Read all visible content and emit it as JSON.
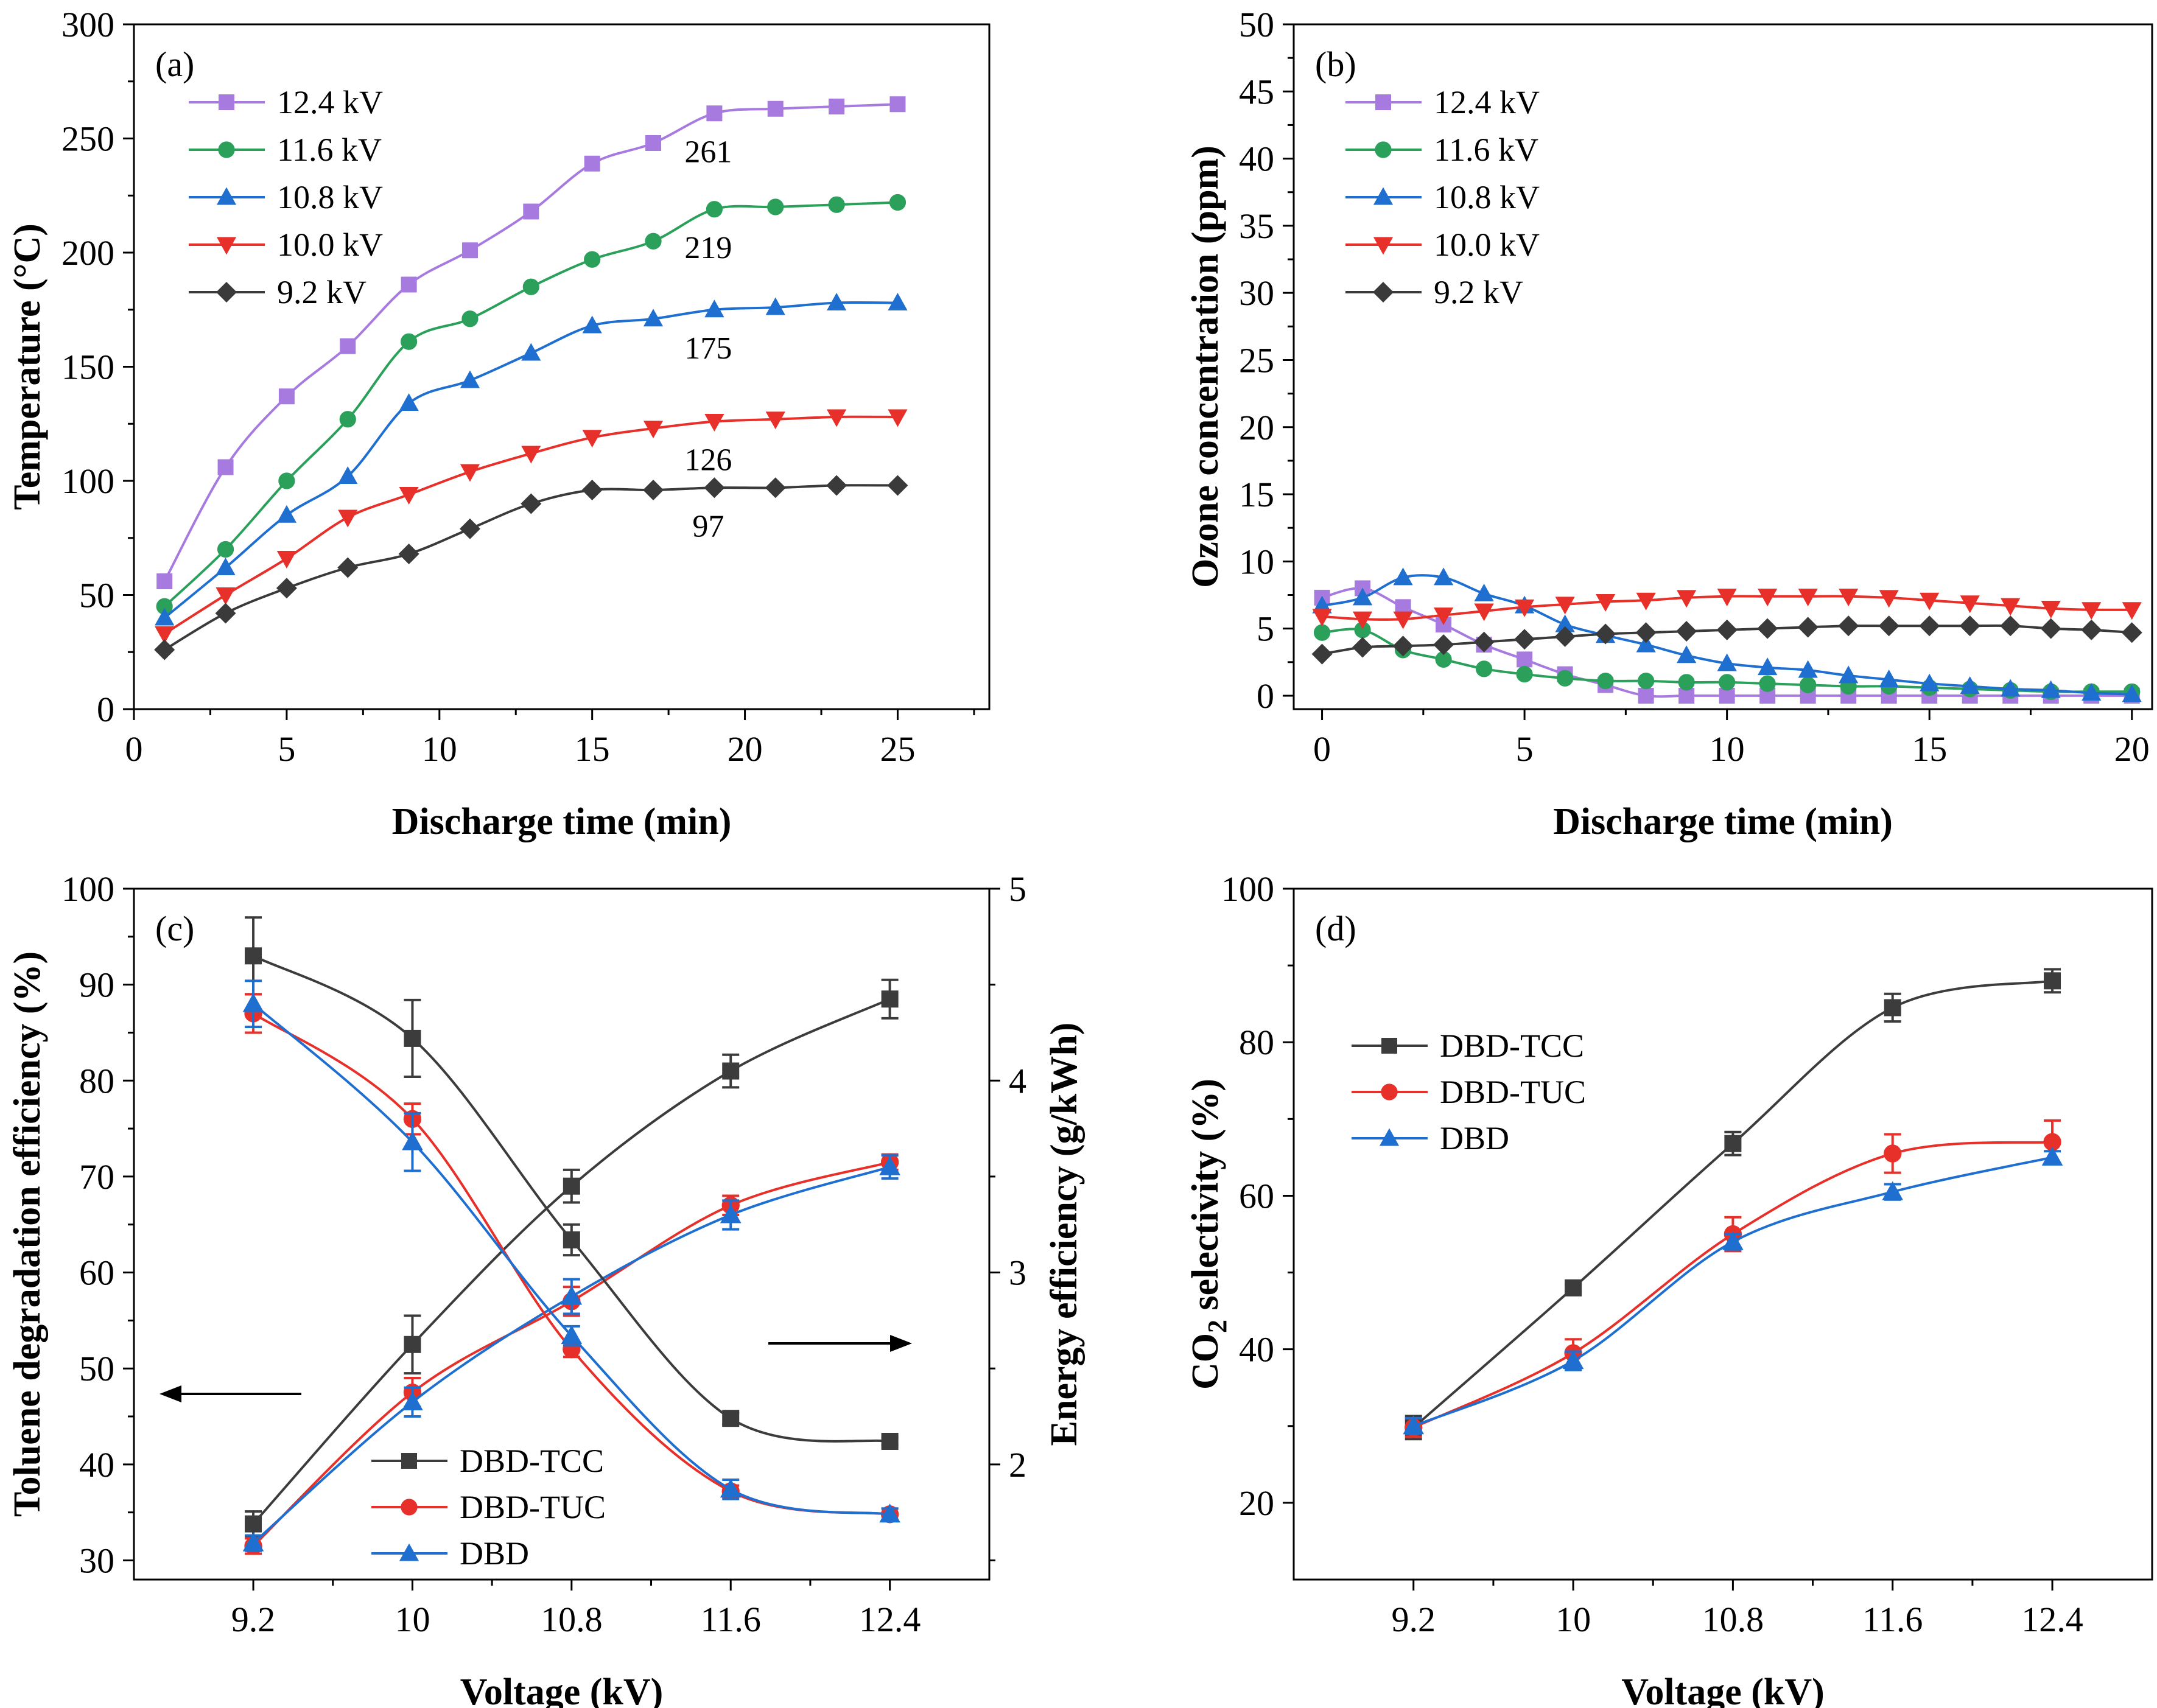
{
  "chart_data": [
    {
      "panel": "(a)",
      "type": "line",
      "xlabel": "Discharge time (min)",
      "ylabel": "Temperature (°C)",
      "xlim": [
        0,
        28
      ],
      "ylim": [
        0,
        300
      ],
      "xticks": [
        0,
        5,
        10,
        15,
        20,
        25
      ],
      "yticks": [
        0,
        50,
        100,
        150,
        200,
        250,
        300
      ],
      "grid": false,
      "legend_position": "top-left",
      "x": [
        1,
        3,
        5,
        7,
        9,
        11,
        13,
        15,
        17,
        19,
        21,
        23,
        25
      ],
      "series": [
        {
          "name": "12.4 kV",
          "color": "#a77ae0",
          "marker": "square",
          "values": [
            56,
            106,
            137,
            159,
            186,
            201,
            218,
            239,
            248,
            261,
            263,
            264,
            265
          ]
        },
        {
          "name": "11.6 kV",
          "color": "#2aa05a",
          "marker": "circle",
          "values": [
            45,
            70,
            100,
            127,
            161,
            171,
            185,
            197,
            205,
            219,
            220,
            221,
            222
          ]
        },
        {
          "name": "10.8 kV",
          "color": "#1e6fd0",
          "marker": "triangle-up",
          "values": [
            40,
            62,
            85,
            102,
            134,
            144,
            156,
            168,
            171,
            175,
            176,
            178,
            178
          ]
        },
        {
          "name": "10.0 kV",
          "color": "#e8302a",
          "marker": "triangle-down",
          "values": [
            33,
            50,
            66,
            84,
            94,
            104,
            112,
            119,
            123,
            126,
            127,
            128,
            128
          ]
        },
        {
          "name": "9.2 kV",
          "color": "#3a3a3a",
          "marker": "diamond",
          "values": [
            26,
            42,
            53,
            62,
            68,
            79,
            90,
            96,
            96,
            97,
            97,
            98,
            98
          ]
        }
      ],
      "annotations": [
        {
          "text": "261",
          "x": 19,
          "y": 261
        },
        {
          "text": "219",
          "x": 19,
          "y": 219
        },
        {
          "text": "175",
          "x": 19,
          "y": 175
        },
        {
          "text": "126",
          "x": 19,
          "y": 126
        },
        {
          "text": "97",
          "x": 19,
          "y": 97
        }
      ]
    },
    {
      "panel": "(b)",
      "type": "line",
      "xlabel": "Discharge time (min)",
      "ylabel": "Ozone concentration (ppm)",
      "xlim": [
        -0.7,
        20.5
      ],
      "ylim": [
        -1,
        50
      ],
      "xticks": [
        0,
        5,
        10,
        15,
        20
      ],
      "yticks": [
        0,
        5,
        10,
        15,
        20,
        25,
        30,
        35,
        40,
        45,
        50
      ],
      "grid": false,
      "legend_position": "top-left",
      "x": [
        0,
        1,
        2,
        3,
        4,
        5,
        6,
        7,
        8,
        9,
        10,
        11,
        12,
        13,
        14,
        15,
        16,
        17,
        18,
        19,
        20
      ],
      "series": [
        {
          "name": "12.4 kV",
          "color": "#a77ae0",
          "marker": "square",
          "values": [
            7.3,
            8.0,
            6.6,
            5.3,
            3.8,
            2.7,
            1.6,
            0.8,
            0,
            0,
            0,
            0,
            0,
            0,
            0,
            0,
            0,
            0,
            0,
            0,
            0
          ]
        },
        {
          "name": "11.6 kV",
          "color": "#2aa05a",
          "marker": "circle",
          "values": [
            4.7,
            4.9,
            3.4,
            2.7,
            2.0,
            1.6,
            1.3,
            1.1,
            1.1,
            1.0,
            1.0,
            0.9,
            0.8,
            0.7,
            0.7,
            0.6,
            0.5,
            0.4,
            0.3,
            0.3,
            0.3
          ]
        },
        {
          "name": "10.8 kV",
          "color": "#1e6fd0",
          "marker": "triangle-up",
          "values": [
            6.7,
            7.3,
            8.8,
            8.8,
            7.6,
            6.7,
            5.3,
            4.5,
            3.8,
            3.0,
            2.4,
            2.1,
            1.9,
            1.5,
            1.2,
            0.9,
            0.7,
            0.5,
            0.4,
            0.2,
            0.1
          ]
        },
        {
          "name": "10.0 kV",
          "color": "#e8302a",
          "marker": "triangle-down",
          "values": [
            5.9,
            5.7,
            5.7,
            6.0,
            6.3,
            6.6,
            6.8,
            7.0,
            7.1,
            7.3,
            7.4,
            7.4,
            7.4,
            7.4,
            7.3,
            7.1,
            6.9,
            6.7,
            6.5,
            6.4,
            6.4
          ]
        },
        {
          "name": "9.2 kV",
          "color": "#3a3a3a",
          "marker": "diamond",
          "values": [
            3.1,
            3.6,
            3.7,
            3.8,
            4.0,
            4.2,
            4.4,
            4.6,
            4.7,
            4.8,
            4.9,
            5.0,
            5.1,
            5.2,
            5.2,
            5.2,
            5.2,
            5.2,
            5.0,
            4.9,
            4.7
          ]
        }
      ]
    },
    {
      "panel": "(c)",
      "type": "line",
      "xlabel": "Voltage (kV)",
      "ylabel": "Toluene degradation efficiency (%)",
      "y2label": "Energy efficiency (g/kWh)",
      "categories": [
        "9.2",
        "10",
        "10.8",
        "11.6",
        "12.4"
      ],
      "xlim": [
        8.6,
        12.9
      ],
      "ylim": [
        28,
        100
      ],
      "y2lim": [
        1.4,
        5
      ],
      "yticks": [
        30,
        40,
        50,
        60,
        70,
        80,
        90,
        100
      ],
      "y2ticks": [
        2,
        3,
        4,
        5
      ],
      "grid": false,
      "legend_position": "bottom-center",
      "x": [
        9.2,
        10,
        10.8,
        11.6,
        12.4
      ],
      "series": [
        {
          "name": "DBD-TCC",
          "color": "#3c3c3c",
          "marker": "square",
          "axis": "left",
          "values": [
            33.8,
            52.5,
            69.0,
            81.0,
            88.5
          ],
          "errors": [
            1.3,
            3.0,
            1.7,
            1.7,
            2.0
          ]
        },
        {
          "name": "DBD-TUC",
          "color": "#e8302a",
          "marker": "circle",
          "axis": "left",
          "values": [
            31.5,
            47.5,
            57.0,
            67.0,
            71.5
          ],
          "errors": [
            0.8,
            1.5,
            1.5,
            1.0,
            0.8
          ]
        },
        {
          "name": "DBD",
          "color": "#1e6fd0",
          "marker": "triangle-up",
          "axis": "left",
          "values": [
            31.8,
            46.5,
            57.5,
            66.0,
            71.0
          ],
          "errors": [
            0.8,
            1.5,
            1.8,
            1.5,
            1.2
          ]
        },
        {
          "name": "DBD-TCC",
          "color": "#3c3c3c",
          "marker": "square",
          "axis": "right",
          "values": [
            4.65,
            4.22,
            3.17,
            2.24,
            2.12
          ],
          "errors": [
            0.2,
            0.2,
            0.08,
            0.03,
            0.02
          ],
          "show_in_legend": false
        },
        {
          "name": "DBD-TUC",
          "color": "#e8302a",
          "marker": "circle",
          "axis": "right",
          "values": [
            4.35,
            3.8,
            2.6,
            1.86,
            1.74
          ],
          "errors": [
            0.1,
            0.08,
            0.04,
            0.03,
            0.03
          ],
          "show_in_legend": false
        },
        {
          "name": "DBD",
          "color": "#1e6fd0",
          "marker": "triangle-up",
          "axis": "right",
          "values": [
            4.4,
            3.68,
            2.67,
            1.87,
            1.74
          ],
          "errors": [
            0.12,
            0.15,
            0.05,
            0.05,
            0.03
          ],
          "show_in_legend": false
        }
      ],
      "arrows": [
        {
          "direction": "left",
          "axis": "left"
        },
        {
          "direction": "right",
          "axis": "right"
        }
      ]
    },
    {
      "panel": "(d)",
      "type": "line",
      "xlabel": "Voltage (kV)",
      "ylabel_parts": [
        "CO",
        "2",
        " selectivity (%)"
      ],
      "categories": [
        "9.2",
        "10",
        "10.8",
        "11.6",
        "12.4"
      ],
      "xlim": [
        8.6,
        12.9
      ],
      "ylim": [
        10,
        100
      ],
      "yticks": [
        20,
        40,
        60,
        80,
        100
      ],
      "grid": false,
      "legend_position": "top-left",
      "x": [
        9.2,
        10,
        10.8,
        11.6,
        12.4
      ],
      "series": [
        {
          "name": "DBD-TCC",
          "color": "#3c3c3c",
          "marker": "square",
          "values": [
            29.8,
            48.0,
            66.8,
            84.5,
            88.0
          ],
          "errors": [
            1.5,
            0.5,
            1.5,
            1.8,
            1.5
          ]
        },
        {
          "name": "DBD-TUC",
          "color": "#e8302a",
          "marker": "circle",
          "values": [
            29.8,
            39.5,
            55.0,
            65.5,
            67.0
          ],
          "errors": [
            1.2,
            1.8,
            2.2,
            2.5,
            2.8
          ]
        },
        {
          "name": "DBD",
          "color": "#1e6fd0",
          "marker": "triangle-up",
          "values": [
            30.0,
            38.5,
            54.0,
            60.5,
            65.0
          ],
          "errors": [
            1.0,
            1.2,
            1.0,
            1.0,
            0.8
          ]
        }
      ]
    }
  ]
}
